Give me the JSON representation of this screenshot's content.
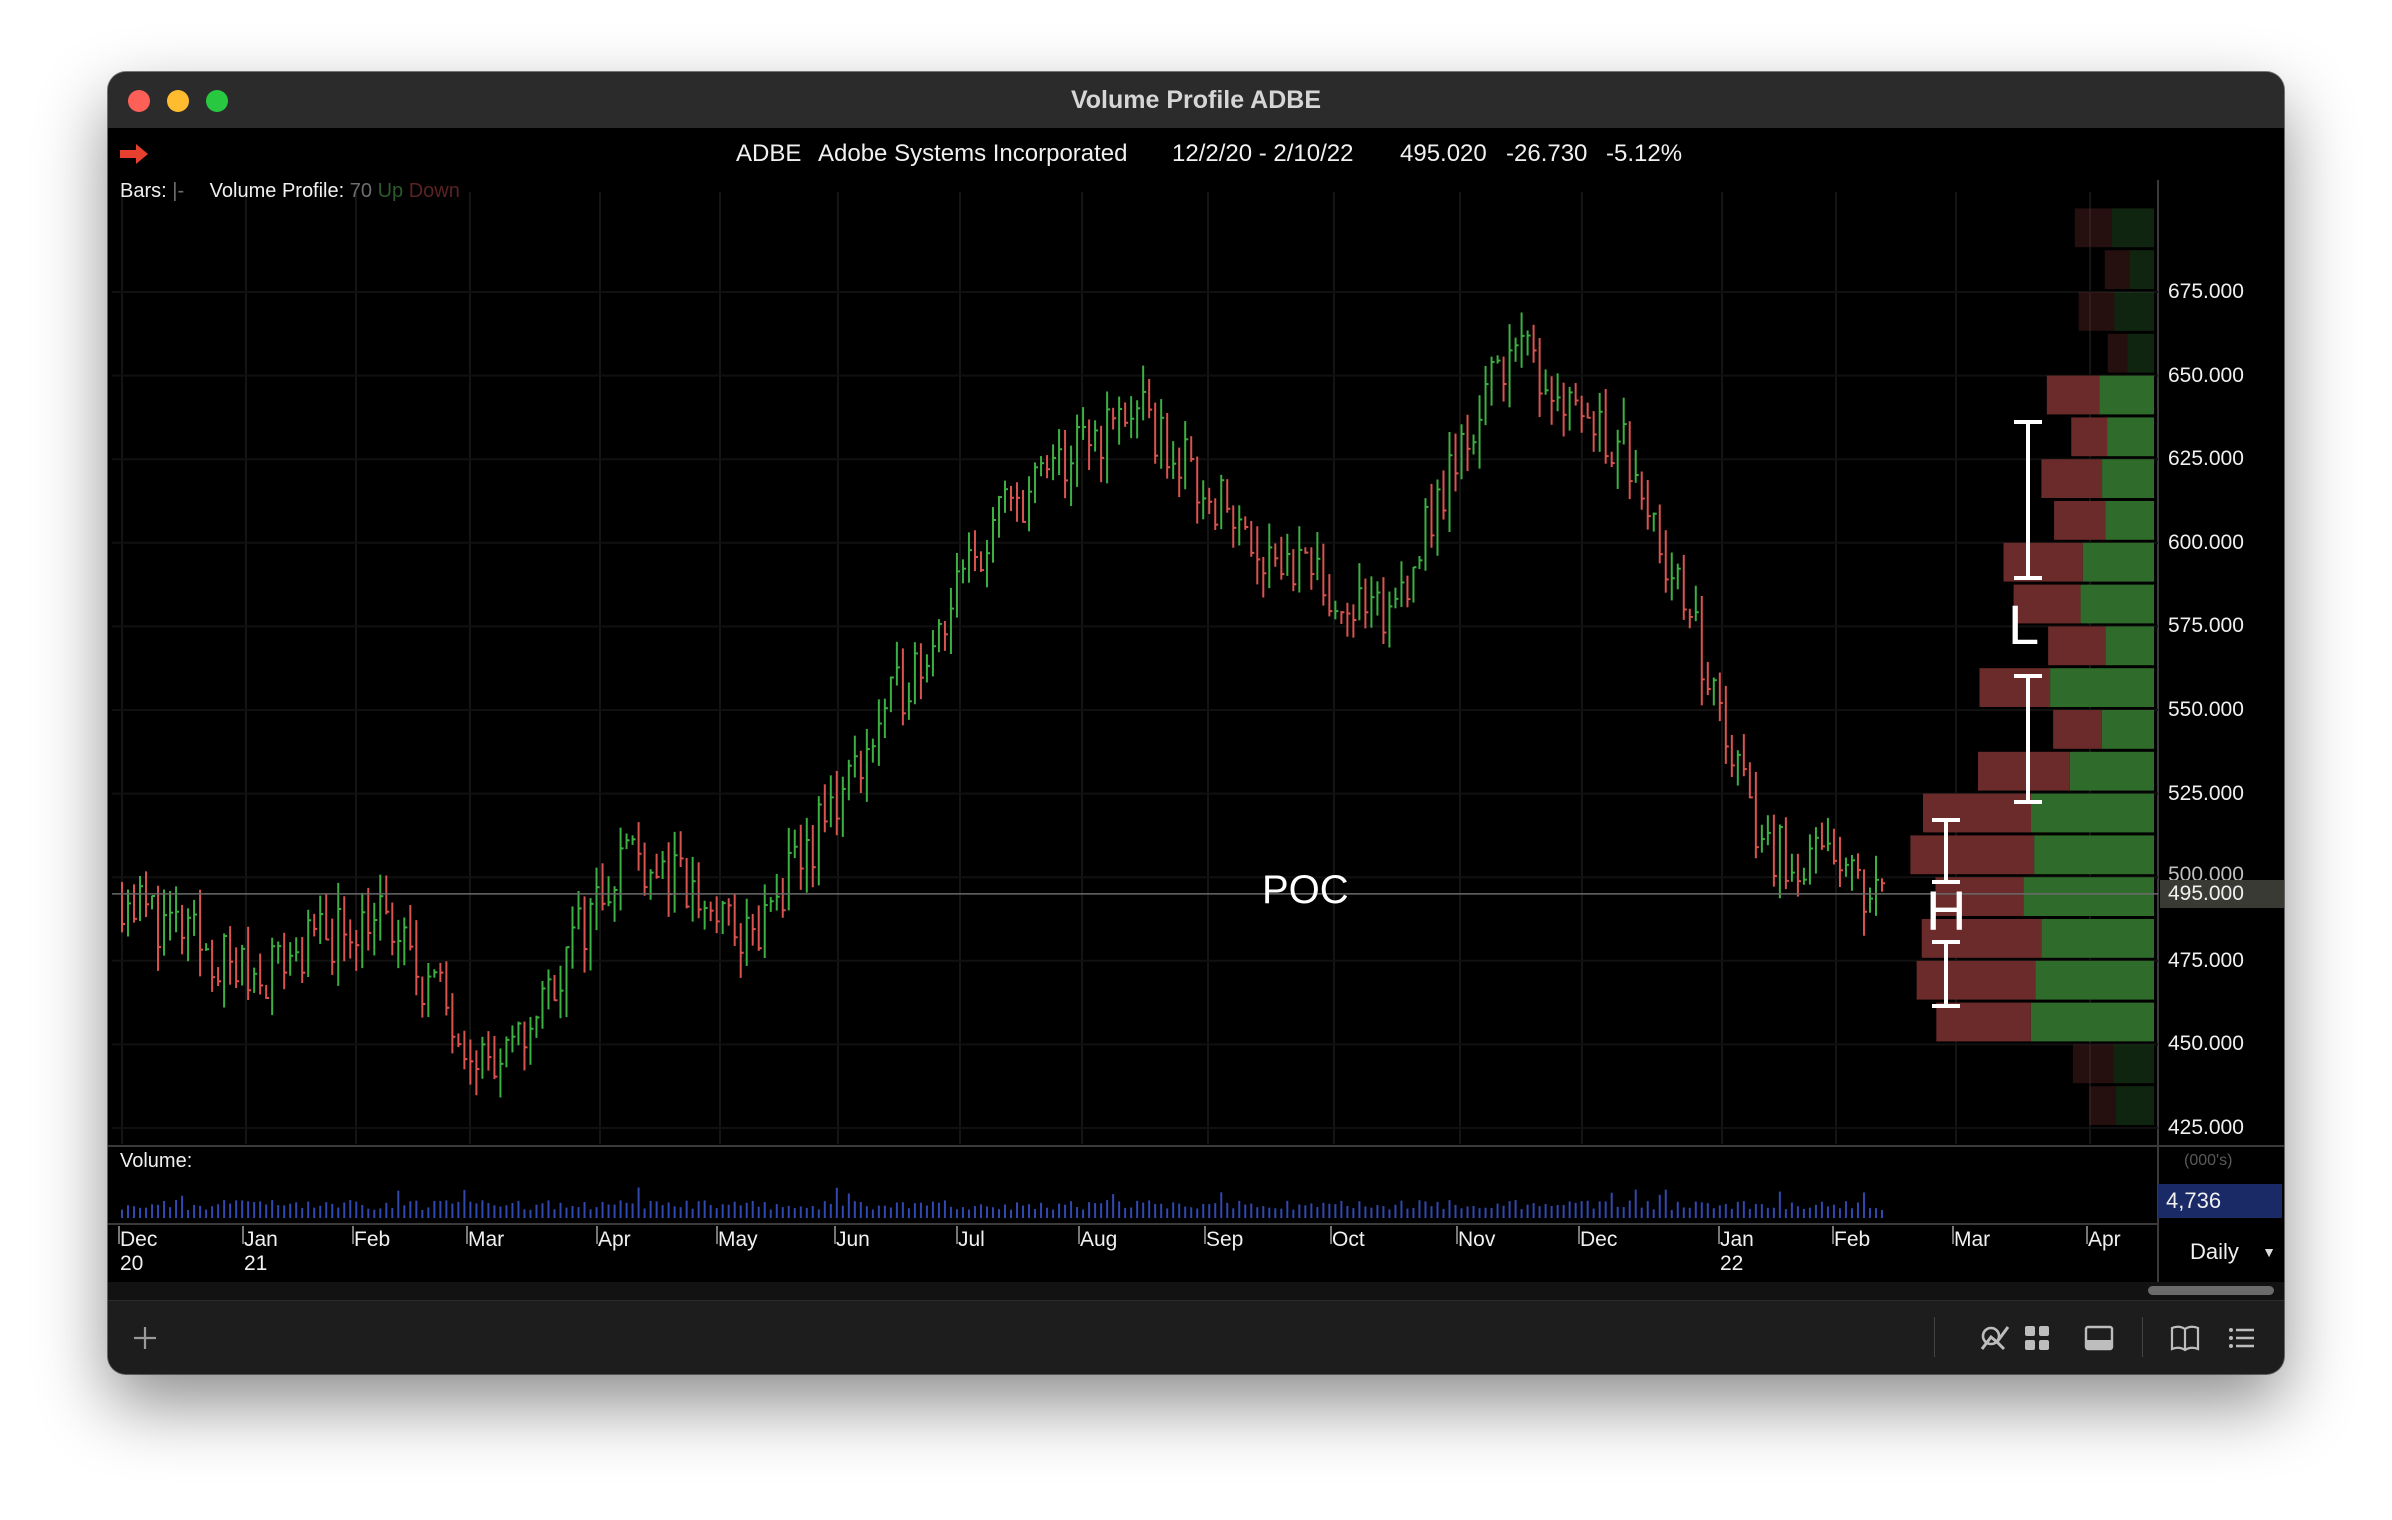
{
  "window": {
    "title": "Volume Profile ADBE"
  },
  "quote": {
    "symbol": "ADBE",
    "company": "Adobe Systems Incorporated",
    "date_range": "12/2/20 - 2/10/22",
    "last": "495.020",
    "change": "-26.730",
    "change_pct": "-5.12%"
  },
  "hud": {
    "bars_label": "Bars:",
    "bars_value": "|-",
    "vp_label": "Volume Profile:",
    "vp_rows": "70",
    "vp_up": "Up",
    "vp_down": "Down"
  },
  "price_axis": {
    "labels": [
      "675.000",
      "650.000",
      "625.000",
      "600.000",
      "575.000",
      "550.000",
      "525.000",
      "500.000",
      "475.000",
      "450.000",
      "425.000"
    ],
    "current": "495.000"
  },
  "annotations": {
    "poc": "POC",
    "low_value": "L",
    "high_value": "H"
  },
  "volume": {
    "label": "Volume:",
    "unit": "(000's)",
    "value": "4,736"
  },
  "time_axis": {
    "months": [
      {
        "top": "Dec",
        "bottom": "20"
      },
      {
        "top": "Jan",
        "bottom": "21"
      },
      {
        "top": "Feb",
        "bottom": ""
      },
      {
        "top": "Mar",
        "bottom": ""
      },
      {
        "top": "Apr",
        "bottom": ""
      },
      {
        "top": "May",
        "bottom": ""
      },
      {
        "top": "Jun",
        "bottom": ""
      },
      {
        "top": "Jul",
        "bottom": ""
      },
      {
        "top": "Aug",
        "bottom": ""
      },
      {
        "top": "Sep",
        "bottom": ""
      },
      {
        "top": "Oct",
        "bottom": ""
      },
      {
        "top": "Nov",
        "bottom": ""
      },
      {
        "top": "Dec",
        "bottom": ""
      },
      {
        "top": "Jan",
        "bottom": "22"
      },
      {
        "top": "Feb",
        "bottom": ""
      },
      {
        "top": "Mar",
        "bottom": ""
      },
      {
        "top": "Apr",
        "bottom": ""
      }
    ]
  },
  "period": {
    "value": "Daily"
  },
  "toolbar": {
    "icons": [
      "plus-icon",
      "search-icon",
      "line-chart-icon",
      "grid-icon",
      "panel-icon",
      "book-icon",
      "list-icon"
    ]
  },
  "chart_data": {
    "type": "ohlc",
    "price_range": [
      420,
      700
    ],
    "poc_price": 495,
    "series": [
      {
        "name": "ADBE",
        "month_closes": [
          {
            "x": "Dec 20",
            "y": 495
          },
          {
            "x": "Jan 21",
            "y": 470
          },
          {
            "x": "Feb",
            "y": 490
          },
          {
            "x": "Mar",
            "y": 440
          },
          {
            "x": "Apr",
            "y": 510
          },
          {
            "x": "May",
            "y": 480
          },
          {
            "x": "Jun",
            "y": 545
          },
          {
            "x": "Jul",
            "y": 610
          },
          {
            "x": "Aug",
            "y": 640
          },
          {
            "x": "Sep",
            "y": 600
          },
          {
            "x": "Oct",
            "y": 575
          },
          {
            "x": "Nov",
            "y": 660
          },
          {
            "x": "Dec",
            "y": 625
          },
          {
            "x": "Jan 22",
            "y": 510
          },
          {
            "x": "Feb",
            "y": 495
          }
        ]
      }
    ],
    "colors": {
      "up": "#3cb043",
      "down": "#d9534f",
      "profile_up": "#2f6b2a",
      "profile_down": "#6b2b2b",
      "volume": "#3048b0"
    }
  }
}
